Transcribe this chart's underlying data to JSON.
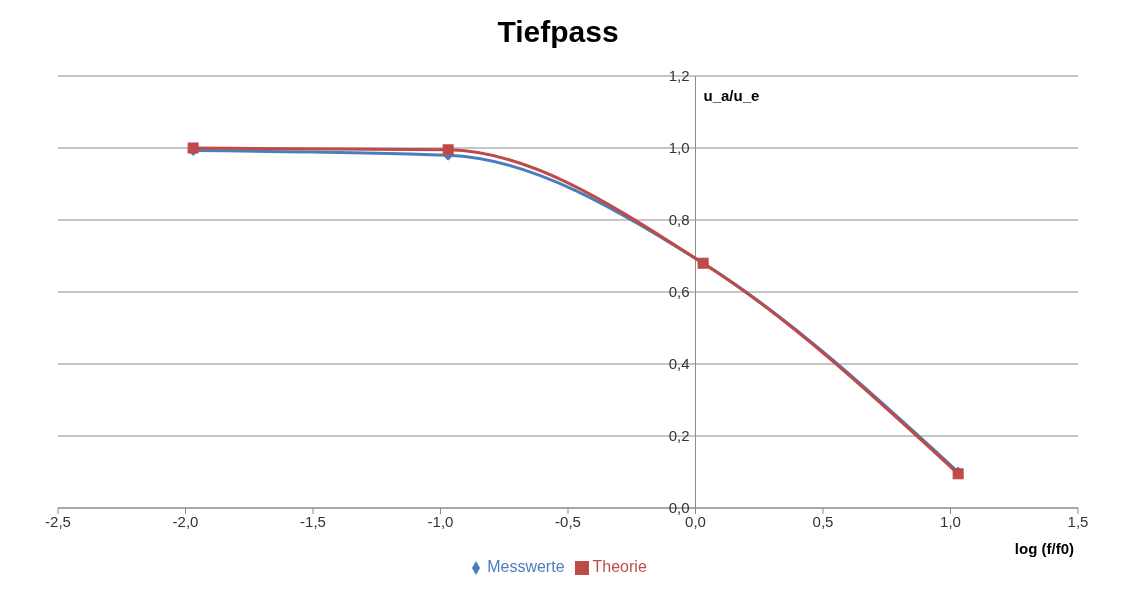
{
  "chart_data": {
    "type": "line",
    "title": "Tiefpass",
    "xlabel": "log (f/f0)",
    "ylabel": "u_a/u_e",
    "series": [
      {
        "name": "Messwerte",
        "color": "#4a7ebb",
        "marker": "diamond",
        "x": [
          -1.97,
          -0.97,
          0.03,
          1.03
        ],
        "values": [
          0.993,
          0.98,
          0.68,
          0.1
        ]
      },
      {
        "name": "Theorie",
        "color": "#be4b48",
        "marker": "square",
        "x": [
          -1.97,
          -0.97,
          0.03,
          1.03
        ],
        "values": [
          1.0,
          0.995,
          0.68,
          0.095
        ]
      }
    ],
    "xlim": [
      -2.5,
      1.5
    ],
    "xticks": [
      {
        "value": -2.5,
        "label": "-2,5"
      },
      {
        "value": -2,
        "label": "-2,0"
      },
      {
        "value": -1.5,
        "label": "-1,5"
      },
      {
        "value": -1,
        "label": "-1,0"
      },
      {
        "value": -0.5,
        "label": "-0,5"
      },
      {
        "value": 0,
        "label": "0,0"
      },
      {
        "value": 0.5,
        "label": "0,5"
      },
      {
        "value": 1,
        "label": "1,0"
      },
      {
        "value": 1.5,
        "label": "1,5"
      }
    ],
    "ylim": [
      0,
      1.2
    ],
    "yticks": [
      {
        "value": 0,
        "label": "0,0"
      },
      {
        "value": 0.2,
        "label": "0,2"
      },
      {
        "value": 0.4,
        "label": "0,4"
      },
      {
        "value": 0.6,
        "label": "0,6"
      },
      {
        "value": 0.8,
        "label": "0,8"
      },
      {
        "value": 1,
        "label": "1,0"
      },
      {
        "value": 1.2,
        "label": "1,2"
      }
    ],
    "grid": "y",
    "legend": "bottom",
    "line_style": "solid"
  }
}
